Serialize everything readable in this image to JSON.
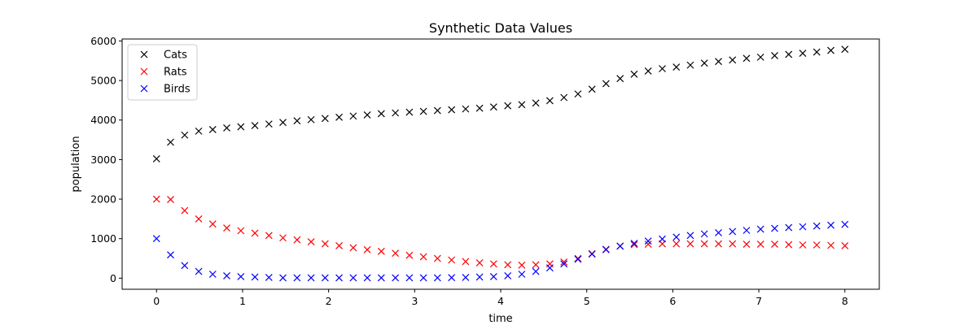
{
  "chart_data": {
    "type": "scatter",
    "title": "Synthetic Data Values",
    "xlabel": "time",
    "ylabel": "population",
    "xlim": [
      -0.4,
      8.4
    ],
    "ylim": [
      -280,
      6050
    ],
    "xticks": [
      0,
      1,
      2,
      3,
      4,
      5,
      6,
      7,
      8
    ],
    "yticks": [
      0,
      1000,
      2000,
      3000,
      4000,
      5000,
      6000
    ],
    "grid": false,
    "legend_position": "upper-left",
    "marker": "x",
    "x": [
      0,
      0.163,
      0.327,
      0.49,
      0.653,
      0.816,
      0.98,
      1.143,
      1.306,
      1.469,
      1.633,
      1.796,
      1.959,
      2.122,
      2.286,
      2.449,
      2.612,
      2.776,
      2.939,
      3.102,
      3.265,
      3.429,
      3.592,
      3.755,
      3.918,
      4.082,
      4.245,
      4.408,
      4.571,
      4.735,
      4.898,
      5.061,
      5.224,
      5.388,
      5.551,
      5.714,
      5.878,
      6.041,
      6.204,
      6.367,
      6.531,
      6.694,
      6.857,
      7.02,
      7.184,
      7.347,
      7.51,
      7.673,
      7.837,
      8.0
    ],
    "series": [
      {
        "name": "Cats",
        "color": "#000000",
        "values": [
          3020,
          3440,
          3620,
          3720,
          3760,
          3800,
          3830,
          3860,
          3900,
          3940,
          3980,
          4010,
          4040,
          4070,
          4100,
          4130,
          4160,
          4180,
          4200,
          4220,
          4240,
          4260,
          4280,
          4300,
          4330,
          4360,
          4390,
          4430,
          4490,
          4570,
          4660,
          4780,
          4920,
          5050,
          5160,
          5240,
          5300,
          5340,
          5390,
          5440,
          5480,
          5520,
          5560,
          5590,
          5630,
          5660,
          5690,
          5720,
          5760,
          5790
        ]
      },
      {
        "name": "Rats",
        "color": "#ff0000",
        "values": [
          2000,
          1990,
          1710,
          1500,
          1370,
          1270,
          1200,
          1140,
          1080,
          1020,
          970,
          920,
          870,
          820,
          770,
          720,
          680,
          630,
          580,
          540,
          500,
          460,
          420,
          390,
          360,
          340,
          330,
          340,
          360,
          410,
          500,
          620,
          730,
          810,
          850,
          860,
          870,
          870,
          870,
          870,
          870,
          870,
          860,
          860,
          860,
          850,
          840,
          840,
          830,
          820
        ]
      },
      {
        "name": "Birds",
        "color": "#0000ff",
        "values": [
          1000,
          590,
          320,
          170,
          100,
          60,
          40,
          30,
          20,
          10,
          10,
          10,
          10,
          10,
          10,
          10,
          10,
          10,
          10,
          10,
          10,
          15,
          20,
          30,
          40,
          60,
          100,
          170,
          260,
          360,
          480,
          610,
          720,
          810,
          880,
          940,
          990,
          1040,
          1080,
          1120,
          1150,
          1180,
          1210,
          1240,
          1260,
          1280,
          1300,
          1320,
          1340,
          1360
        ]
      }
    ]
  }
}
